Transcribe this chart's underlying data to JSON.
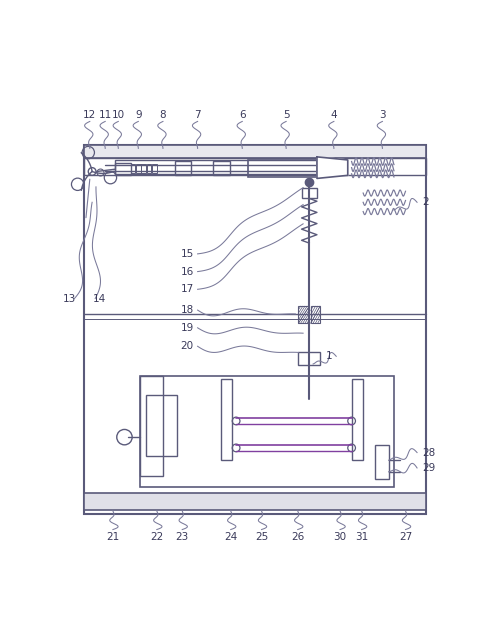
{
  "fig_width": 4.93,
  "fig_height": 6.27,
  "dpi": 100,
  "bg_color": "#ffffff",
  "lc": "#5a5a7a",
  "label_color": "#3a3a5a"
}
